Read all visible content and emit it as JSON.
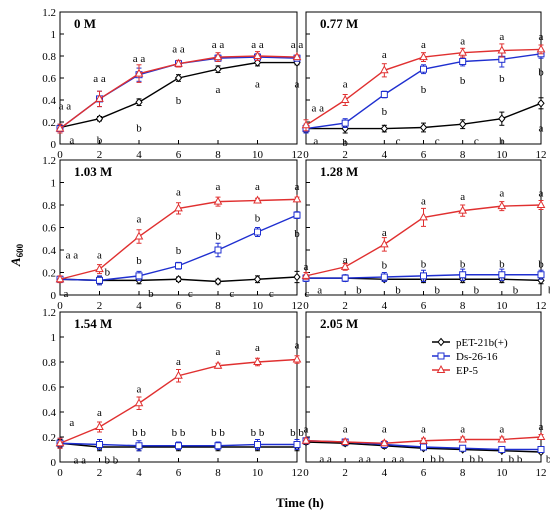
{
  "chart_data": {
    "type": "line",
    "ylabel_main": "A",
    "ylabel_sub": "600",
    "xlabel": "Time (h)",
    "x": [
      0,
      2,
      4,
      6,
      8,
      10,
      12
    ],
    "x_ticks": [
      "0",
      "2",
      "4",
      "6",
      "8",
      "10",
      "12"
    ],
    "y_ticks": [
      "0",
      "0.2",
      "0.4",
      "0.6",
      "0.8",
      "1",
      "1.2"
    ],
    "ylim": [
      0,
      1.2
    ],
    "xlim": [
      0,
      12
    ],
    "legend": {
      "placement": "inside panel 2.05 M, upper right",
      "entries": [
        "pET-21b(+)",
        "Ds-26-16",
        "EP-5"
      ]
    },
    "series_styles": [
      {
        "name": "pET-21b(+)",
        "color": "#000000",
        "marker": "diamond"
      },
      {
        "name": "Ds-26-16",
        "color": "#1f2fd0",
        "marker": "square"
      },
      {
        "name": "EP-5",
        "color": "#e03030",
        "marker": "triangle"
      }
    ],
    "panels": [
      {
        "title": "0 M",
        "series": [
          {
            "name": "pET-21b(+)",
            "values": [
              0.15,
              0.23,
              0.38,
              0.6,
              0.68,
              0.74,
              0.74
            ],
            "err": [
              0.02,
              0.02,
              0.03,
              0.03,
              0.03,
              0.03,
              0.02
            ]
          },
          {
            "name": "Ds-26-16",
            "values": [
              0.14,
              0.41,
              0.63,
              0.73,
              0.78,
              0.79,
              0.78
            ],
            "err": [
              0.04,
              0.07,
              0.06,
              0.03,
              0.03,
              0.03,
              0.02
            ]
          },
          {
            "name": "EP-5",
            "values": [
              0.14,
              0.41,
              0.64,
              0.73,
              0.79,
              0.8,
              0.79
            ],
            "err": [
              0.04,
              0.07,
              0.08,
              0.03,
              0.04,
              0.04,
              0.02
            ]
          }
        ],
        "annotations": [
          {
            "text": "a a",
            "x": 0.25,
            "y": 0.35
          },
          {
            "text": "a a",
            "x": 2,
            "y": 0.6
          },
          {
            "text": "a a",
            "x": 4,
            "y": 0.78
          },
          {
            "text": "a a",
            "x": 6,
            "y": 0.87
          },
          {
            "text": "a a",
            "x": 8,
            "y": 0.91
          },
          {
            "text": "a a",
            "x": 10,
            "y": 0.91
          },
          {
            "text": "a a",
            "x": 12,
            "y": 0.91
          },
          {
            "text": "a",
            "x": 0.6,
            "y": 0.04
          },
          {
            "text": "b",
            "x": 2,
            "y": 0.04
          },
          {
            "text": "b",
            "x": 4,
            "y": 0.15
          },
          {
            "text": "b",
            "x": 6,
            "y": 0.4
          },
          {
            "text": "a",
            "x": 8,
            "y": 0.5
          },
          {
            "text": "a",
            "x": 10,
            "y": 0.55
          },
          {
            "text": "a",
            "x": 12,
            "y": 0.55
          }
        ]
      },
      {
        "title": "0.77 M",
        "series": [
          {
            "name": "pET-21b(+)",
            "values": [
              0.14,
              0.14,
              0.14,
              0.15,
              0.18,
              0.23,
              0.37
            ],
            "err": [
              0.03,
              0.04,
              0.03,
              0.04,
              0.04,
              0.06,
              0.05
            ]
          },
          {
            "name": "Ds-26-16",
            "values": [
              0.14,
              0.19,
              0.45,
              0.68,
              0.75,
              0.77,
              0.82
            ],
            "err": [
              0.04,
              0.04,
              0.03,
              0.04,
              0.04,
              0.07,
              0.04
            ]
          },
          {
            "name": "EP-5",
            "values": [
              0.17,
              0.4,
              0.67,
              0.79,
              0.83,
              0.85,
              0.86
            ],
            "err": [
              0.05,
              0.05,
              0.06,
              0.04,
              0.04,
              0.06,
              0.04
            ]
          }
        ],
        "annotations": [
          {
            "text": "a a",
            "x": 0.6,
            "y": 0.33
          },
          {
            "text": "a",
            "x": 2,
            "y": 0.55
          },
          {
            "text": "a",
            "x": 4,
            "y": 0.82
          },
          {
            "text": "a",
            "x": 6,
            "y": 0.91
          },
          {
            "text": "a",
            "x": 8,
            "y": 0.94
          },
          {
            "text": "a",
            "x": 10,
            "y": 0.98
          },
          {
            "text": "a",
            "x": 12,
            "y": 0.98
          },
          {
            "text": "b",
            "x": 2,
            "y": 0.02
          },
          {
            "text": "b",
            "x": 4,
            "y": 0.3
          },
          {
            "text": "b",
            "x": 6,
            "y": 0.5
          },
          {
            "text": "b",
            "x": 8,
            "y": 0.58
          },
          {
            "text": "b",
            "x": 10,
            "y": 0.6
          },
          {
            "text": "b",
            "x": 12,
            "y": 0.66
          },
          {
            "text": "a",
            "x": 0.5,
            "y": 0.03
          },
          {
            "text": "c",
            "x": 4.7,
            "y": 0.03
          },
          {
            "text": "c",
            "x": 6.7,
            "y": 0.03
          },
          {
            "text": "c",
            "x": 8.7,
            "y": 0.03
          },
          {
            "text": "b",
            "x": 10,
            "y": 0.03
          },
          {
            "text": "a",
            "x": 12,
            "y": 0.15
          }
        ]
      },
      {
        "title": "1.03 M",
        "series": [
          {
            "name": "pET-21b(+)",
            "values": [
              0.14,
              0.13,
              0.13,
              0.14,
              0.12,
              0.14,
              0.16
            ],
            "err": [
              0.02,
              0.03,
              0.03,
              0.02,
              0.02,
              0.03,
              0.05
            ]
          },
          {
            "name": "Ds-26-16",
            "values": [
              0.14,
              0.13,
              0.17,
              0.26,
              0.4,
              0.56,
              0.71
            ],
            "err": [
              0.02,
              0.04,
              0.04,
              0.03,
              0.06,
              0.04,
              0.03
            ]
          },
          {
            "name": "EP-5",
            "values": [
              0.14,
              0.23,
              0.52,
              0.77,
              0.83,
              0.84,
              0.85
            ],
            "err": [
              0.03,
              0.04,
              0.06,
              0.05,
              0.04,
              0.02,
              0.02
            ]
          }
        ],
        "annotations": [
          {
            "text": "a a",
            "x": 0.6,
            "y": 0.36
          },
          {
            "text": "a",
            "x": 2,
            "y": 0.36
          },
          {
            "text": "a",
            "x": 4,
            "y": 0.68
          },
          {
            "text": "a",
            "x": 6,
            "y": 0.92
          },
          {
            "text": "a",
            "x": 8,
            "y": 0.97
          },
          {
            "text": "a",
            "x": 10,
            "y": 0.97
          },
          {
            "text": "a",
            "x": 12,
            "y": 0.97
          },
          {
            "text": "b",
            "x": 2.4,
            "y": 0.21
          },
          {
            "text": "b",
            "x": 4,
            "y": 0.31
          },
          {
            "text": "b",
            "x": 6,
            "y": 0.4
          },
          {
            "text": "b",
            "x": 8,
            "y": 0.53
          },
          {
            "text": "b",
            "x": 10,
            "y": 0.69
          },
          {
            "text": "b",
            "x": 12,
            "y": 0.55
          },
          {
            "text": "a",
            "x": 0.3,
            "y": 0.02
          },
          {
            "text": "b",
            "x": 4.6,
            "y": 0.02
          },
          {
            "text": "c",
            "x": 6.6,
            "y": 0.02
          },
          {
            "text": "c",
            "x": 8.7,
            "y": 0.02
          },
          {
            "text": "c",
            "x": 10.7,
            "y": 0.02
          },
          {
            "text": "c",
            "x": 12.5,
            "y": 0.02
          }
        ]
      },
      {
        "title": "1.28 M",
        "series": [
          {
            "name": "pET-21b(+)",
            "values": [
              0.15,
              0.15,
              0.14,
              0.14,
              0.14,
              0.14,
              0.13
            ],
            "err": [
              0.02,
              0.02,
              0.02,
              0.03,
              0.03,
              0.03,
              0.03
            ]
          },
          {
            "name": "Ds-26-16",
            "values": [
              0.15,
              0.15,
              0.16,
              0.17,
              0.18,
              0.18,
              0.18
            ],
            "err": [
              0.03,
              0.03,
              0.04,
              0.05,
              0.05,
              0.05,
              0.04
            ]
          },
          {
            "name": "EP-5",
            "values": [
              0.17,
              0.25,
              0.45,
              0.69,
              0.75,
              0.79,
              0.8
            ],
            "err": [
              0.03,
              0.03,
              0.06,
              0.08,
              0.05,
              0.04,
              0.04
            ]
          }
        ],
        "annotations": [
          {
            "text": "a",
            "x": 0,
            "y": 0.26
          },
          {
            "text": "a",
            "x": 2,
            "y": 0.32
          },
          {
            "text": "a",
            "x": 4,
            "y": 0.56
          },
          {
            "text": "a",
            "x": 6,
            "y": 0.84
          },
          {
            "text": "a",
            "x": 8,
            "y": 0.88
          },
          {
            "text": "a",
            "x": 10,
            "y": 0.91
          },
          {
            "text": "a",
            "x": 12,
            "y": 0.91
          },
          {
            "text": "b",
            "x": 4,
            "y": 0.27
          },
          {
            "text": "b",
            "x": 6,
            "y": 0.28
          },
          {
            "text": "b",
            "x": 8,
            "y": 0.28
          },
          {
            "text": "b",
            "x": 10,
            "y": 0.28
          },
          {
            "text": "b",
            "x": 12,
            "y": 0.28
          },
          {
            "text": "a",
            "x": 0.7,
            "y": 0.05
          },
          {
            "text": "b",
            "x": 2.7,
            "y": 0.05
          },
          {
            "text": "b",
            "x": 4.7,
            "y": 0.05
          },
          {
            "text": "b",
            "x": 6.7,
            "y": 0.05
          },
          {
            "text": "b",
            "x": 8.7,
            "y": 0.05
          },
          {
            "text": "b",
            "x": 10.7,
            "y": 0.05
          },
          {
            "text": "b",
            "x": 12.5,
            "y": 0.05
          }
        ]
      },
      {
        "title": "1.54 M",
        "series": [
          {
            "name": "pET-21b(+)",
            "values": [
              0.15,
              0.12,
              0.12,
              0.12,
              0.12,
              0.12,
              0.12
            ],
            "err": [
              0.03,
              0.03,
              0.03,
              0.03,
              0.03,
              0.03,
              0.03
            ]
          },
          {
            "name": "Ds-26-16",
            "values": [
              0.15,
              0.14,
              0.13,
              0.13,
              0.13,
              0.14,
              0.14
            ],
            "err": [
              0.04,
              0.04,
              0.04,
              0.03,
              0.03,
              0.04,
              0.04
            ]
          },
          {
            "name": "EP-5",
            "values": [
              0.15,
              0.28,
              0.47,
              0.69,
              0.77,
              0.8,
              0.82
            ],
            "err": [
              0.04,
              0.04,
              0.05,
              0.05,
              0.02,
              0.03,
              0.03
            ]
          }
        ],
        "annotations": [
          {
            "text": "a",
            "x": 0.6,
            "y": 0.32
          },
          {
            "text": "a",
            "x": 2,
            "y": 0.4
          },
          {
            "text": "a",
            "x": 4,
            "y": 0.59
          },
          {
            "text": "a",
            "x": 6,
            "y": 0.81
          },
          {
            "text": "a",
            "x": 8,
            "y": 0.89
          },
          {
            "text": "a",
            "x": 10,
            "y": 0.92
          },
          {
            "text": "a",
            "x": 12,
            "y": 0.94
          },
          {
            "text": "b b",
            "x": 4,
            "y": 0.24
          },
          {
            "text": "b b",
            "x": 6,
            "y": 0.24
          },
          {
            "text": "b b",
            "x": 8,
            "y": 0.24
          },
          {
            "text": "b b",
            "x": 10,
            "y": 0.24
          },
          {
            "text": "b b",
            "x": 12,
            "y": 0.24
          },
          {
            "text": "a a",
            "x": 1,
            "y": 0.02
          },
          {
            "text": "b b",
            "x": 2.6,
            "y": 0.02
          }
        ]
      },
      {
        "title": "2.05 M",
        "series": [
          {
            "name": "pET-21b(+)",
            "values": [
              0.16,
              0.15,
              0.13,
              0.11,
              0.1,
              0.09,
              0.08
            ],
            "err": [
              0.02,
              0.02,
              0.02,
              0.01,
              0.01,
              0.01,
              0.01
            ]
          },
          {
            "name": "Ds-26-16",
            "values": [
              0.17,
              0.16,
              0.14,
              0.12,
              0.11,
              0.1,
              0.1
            ],
            "err": [
              0.02,
              0.02,
              0.02,
              0.01,
              0.01,
              0.01,
              0.01
            ]
          },
          {
            "name": "EP-5",
            "values": [
              0.17,
              0.16,
              0.15,
              0.17,
              0.18,
              0.18,
              0.2
            ],
            "err": [
              0.02,
              0.02,
              0.02,
              0.02,
              0.02,
              0.02,
              0.02
            ]
          }
        ],
        "annotations": [
          {
            "text": "a",
            "x": 0,
            "y": 0.27
          },
          {
            "text": "a",
            "x": 2,
            "y": 0.27
          },
          {
            "text": "a",
            "x": 4,
            "y": 0.27
          },
          {
            "text": "a",
            "x": 6,
            "y": 0.27
          },
          {
            "text": "a",
            "x": 8,
            "y": 0.27
          },
          {
            "text": "a",
            "x": 10,
            "y": 0.27
          },
          {
            "text": "a",
            "x": 12,
            "y": 0.29
          },
          {
            "text": "a a",
            "x": 1,
            "y": 0.03
          },
          {
            "text": "a a",
            "x": 3,
            "y": 0.03
          },
          {
            "text": "a a",
            "x": 4.7,
            "y": 0.03
          },
          {
            "text": "b b",
            "x": 6.7,
            "y": 0.03
          },
          {
            "text": "b b",
            "x": 8.7,
            "y": 0.03
          },
          {
            "text": "b b",
            "x": 10.7,
            "y": 0.03
          },
          {
            "text": "b b",
            "x": 12.6,
            "y": 0.03
          }
        ]
      }
    ]
  }
}
